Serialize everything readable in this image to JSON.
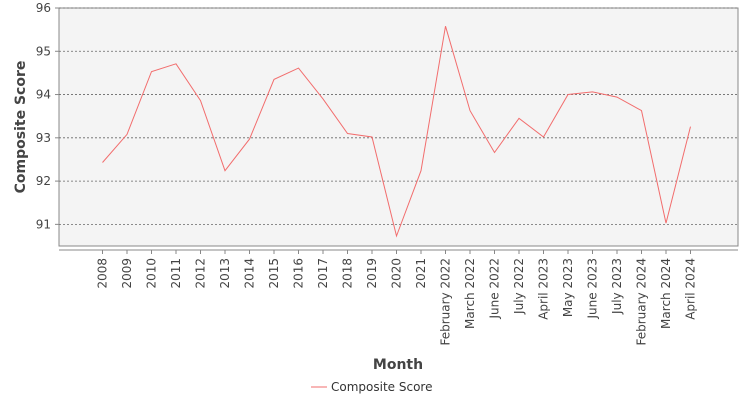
{
  "chart_data": {
    "type": "line",
    "title": "",
    "xlabel": "Month",
    "ylabel": "Composite Score",
    "ylim": [
      90.5,
      96
    ],
    "yticks": [
      91,
      92,
      93,
      94,
      95,
      96
    ],
    "grid": true,
    "legend_position": "bottom",
    "categories": [
      "2008",
      "2009",
      "2010",
      "2011",
      "2012",
      "2013",
      "2014",
      "2015",
      "2016",
      "2017",
      "2018",
      "2019",
      "2020",
      "2021",
      "February 2022",
      "March 2022",
      "June 2022",
      "July 2022",
      "April 2023",
      "May 2023",
      "June 2023",
      "July 2023",
      "February 2024",
      "March 2024",
      "April 2024"
    ],
    "series": [
      {
        "name": "Composite Score",
        "color": "#f26d6d",
        "values": [
          92.43,
          93.08,
          94.53,
          94.71,
          93.86,
          92.24,
          92.97,
          94.35,
          94.61,
          93.9,
          93.1,
          93.02,
          90.73,
          92.24,
          95.58,
          93.63,
          92.66,
          93.45,
          93.02,
          94.0,
          94.06,
          93.94,
          93.63,
          91.03,
          93.26
        ]
      }
    ]
  }
}
